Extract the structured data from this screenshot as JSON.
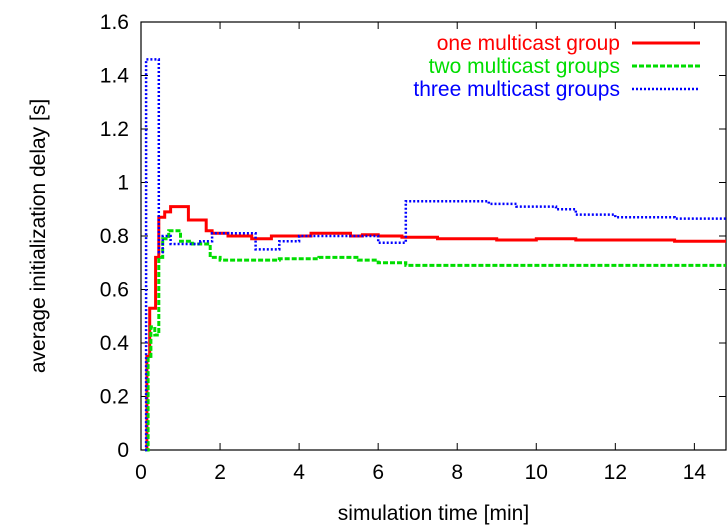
{
  "chart_data": {
    "type": "line",
    "title": "",
    "xlabel": "simulation time [min]",
    "ylabel": "average initialization delay [s]",
    "xlim": [
      0,
      14.8
    ],
    "ylim": [
      0,
      1.6
    ],
    "xticks": [
      0,
      2,
      4,
      6,
      8,
      10,
      12,
      14
    ],
    "yticks": [
      0,
      0.2,
      0.4,
      0.6,
      0.8,
      1,
      1.2,
      1.4,
      1.6
    ],
    "ytick_labels": [
      "0",
      "0.2",
      "0.4",
      "0.6",
      "0.8",
      "1",
      "1.2",
      "1.4",
      "1.6"
    ],
    "grid": false,
    "legend_position": "top-right",
    "series": [
      {
        "name": "one multicast group",
        "color": "#ff0000",
        "style": "solid",
        "x": [
          0.1,
          0.15,
          0.15,
          0.22,
          0.22,
          0.37,
          0.37,
          0.45,
          0.45,
          0.6,
          0.6,
          0.75,
          0.75,
          1.2,
          1.2,
          1.65,
          1.65,
          1.8,
          1.8,
          2.2,
          2.2,
          2.8,
          2.8,
          3.3,
          3.3,
          4.3,
          4.3,
          5.3,
          5.3,
          5.6,
          5.6,
          6.0,
          6.0,
          6.6,
          6.6,
          7.5,
          7.5,
          8.0,
          8.0,
          9.0,
          9.0,
          10.0,
          10.0,
          11.0,
          11.0,
          12.0,
          12.0,
          13.5,
          13.5,
          14.8
        ],
        "y": [
          0.0,
          0.0,
          0.35,
          0.35,
          0.53,
          0.53,
          0.72,
          0.72,
          0.87,
          0.87,
          0.89,
          0.89,
          0.91,
          0.91,
          0.86,
          0.86,
          0.82,
          0.82,
          0.81,
          0.81,
          0.8,
          0.8,
          0.79,
          0.79,
          0.8,
          0.8,
          0.81,
          0.81,
          0.8,
          0.8,
          0.805,
          0.805,
          0.8,
          0.8,
          0.795,
          0.795,
          0.79,
          0.79,
          0.79,
          0.79,
          0.785,
          0.785,
          0.79,
          0.79,
          0.785,
          0.785,
          0.785,
          0.785,
          0.78,
          0.78
        ]
      },
      {
        "name": "two multicast groups",
        "color": "#00dd00",
        "style": "dashed",
        "x": [
          0.1,
          0.18,
          0.18,
          0.25,
          0.25,
          0.35,
          0.35,
          0.45,
          0.45,
          0.55,
          0.55,
          0.7,
          0.7,
          1.0,
          1.0,
          1.3,
          1.3,
          1.75,
          1.75,
          2.0,
          2.0,
          2.5,
          2.5,
          2.9,
          2.9,
          3.5,
          3.5,
          4.5,
          4.5,
          5.5,
          5.5,
          6.0,
          6.0,
          6.7,
          6.7,
          8.0,
          8.0,
          10.0,
          10.0,
          12.0,
          12.0,
          14.8
        ],
        "y": [
          0.0,
          0.0,
          0.35,
          0.35,
          0.46,
          0.46,
          0.43,
          0.43,
          0.72,
          0.72,
          0.79,
          0.79,
          0.82,
          0.82,
          0.78,
          0.78,
          0.77,
          0.77,
          0.72,
          0.72,
          0.71,
          0.71,
          0.71,
          0.71,
          0.71,
          0.71,
          0.715,
          0.715,
          0.72,
          0.72,
          0.71,
          0.71,
          0.7,
          0.7,
          0.69,
          0.69,
          0.69,
          0.69,
          0.69,
          0.69,
          0.69,
          0.69
        ]
      },
      {
        "name": "three multicast groups",
        "color": "#0000ff",
        "style": "dotted",
        "x": [
          0.1,
          0.13,
          0.13,
          0.45,
          0.45,
          0.55,
          0.55,
          0.75,
          0.75,
          1.1,
          1.1,
          1.5,
          1.5,
          1.8,
          1.8,
          2.9,
          2.9,
          3.5,
          3.5,
          4.0,
          4.0,
          5.0,
          5.0,
          6.0,
          6.0,
          6.7,
          6.7,
          7.5,
          7.5,
          8.8,
          8.8,
          9.5,
          9.5,
          10.5,
          10.5,
          11.0,
          11.0,
          12.0,
          12.0,
          13.5,
          13.5,
          14.8
        ],
        "y": [
          0.0,
          0.0,
          1.46,
          1.46,
          0.74,
          0.74,
          0.8,
          0.8,
          0.77,
          0.77,
          0.77,
          0.77,
          0.78,
          0.78,
          0.81,
          0.81,
          0.75,
          0.75,
          0.78,
          0.78,
          0.8,
          0.8,
          0.8,
          0.8,
          0.775,
          0.775,
          0.93,
          0.93,
          0.93,
          0.93,
          0.92,
          0.92,
          0.91,
          0.91,
          0.9,
          0.9,
          0.88,
          0.88,
          0.87,
          0.87,
          0.865,
          0.865
        ]
      }
    ]
  }
}
